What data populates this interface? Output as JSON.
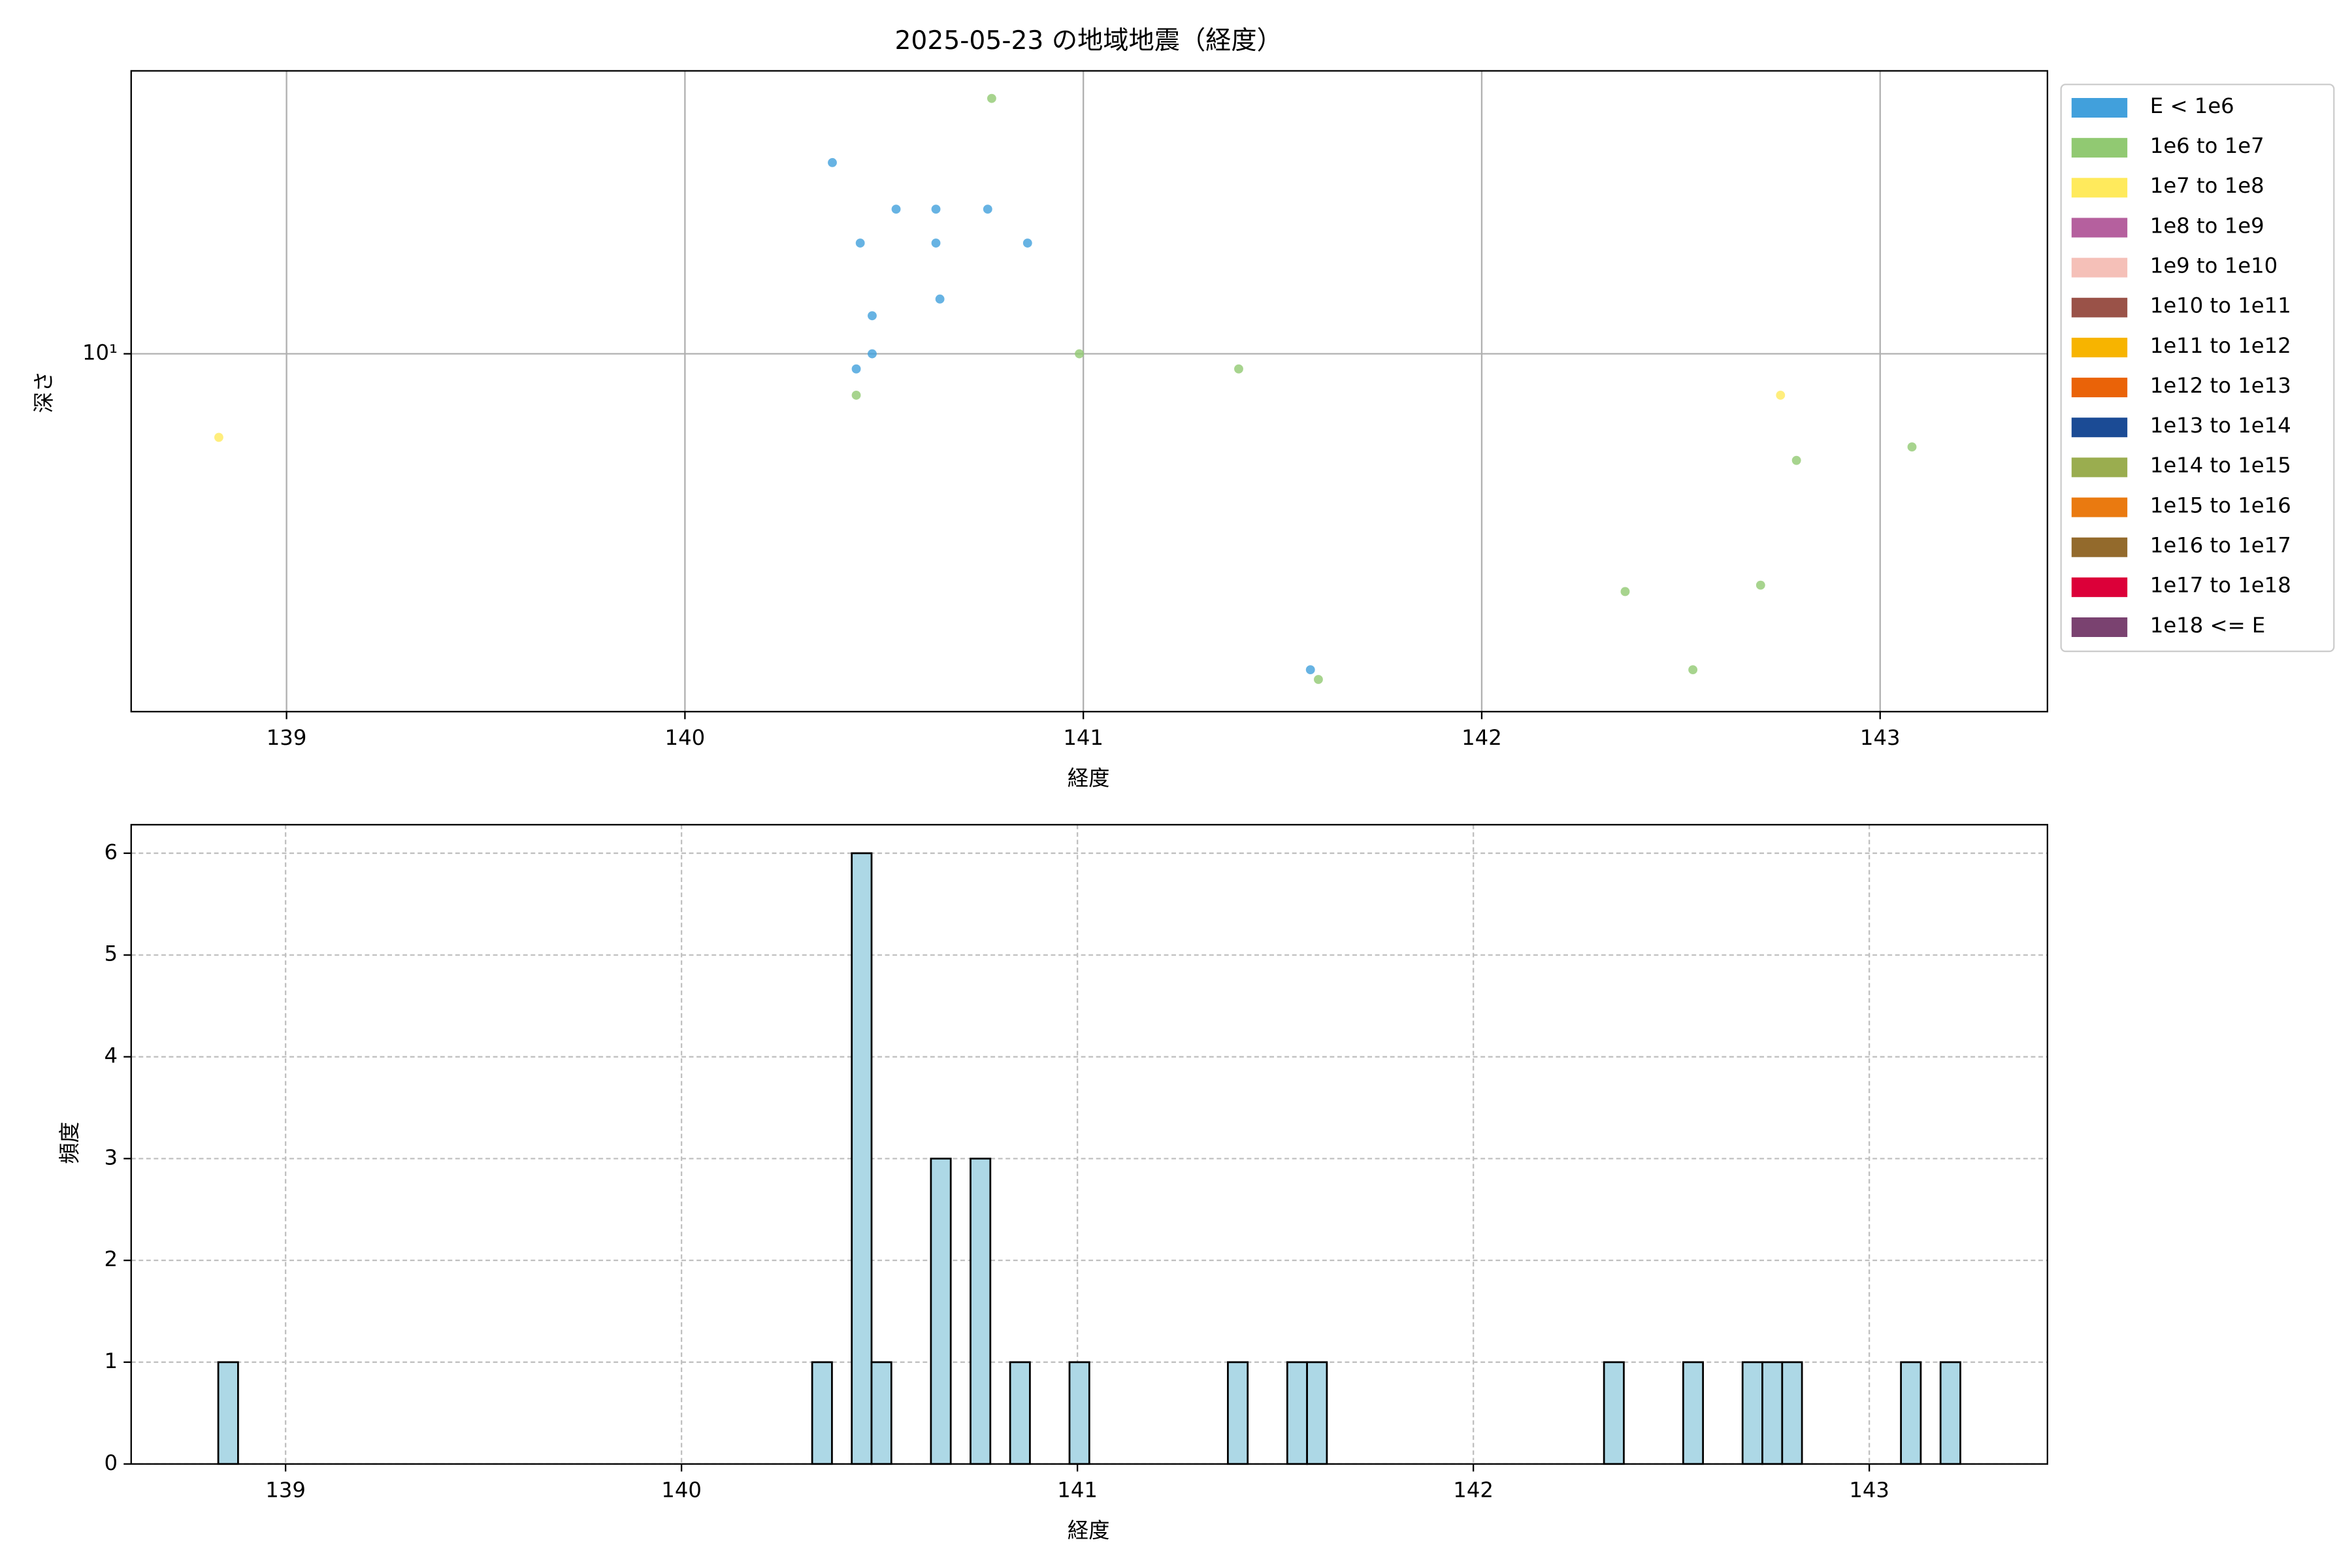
{
  "chart_data": [
    {
      "type": "scatter",
      "title": "2025-05-23 の地域地震（経度）",
      "xlabel": "経度",
      "ylabel": "深さ",
      "xlim": [
        138.61,
        143.42
      ],
      "ylim": [
        1.8,
        38.8
      ],
      "yscale": "log",
      "xticks": [
        139,
        140,
        141,
        142,
        143
      ],
      "yticks": [
        {
          "value": 10,
          "label": "10¹"
        }
      ],
      "grid": true,
      "legend": "outside upper right",
      "series": [
        {
          "name": "E < 1e6",
          "color": "#41a0dc",
          "x": [
            140.37,
            140.44,
            140.53,
            140.63,
            140.63,
            140.76,
            140.86,
            140.64,
            140.47,
            140.47,
            140.43,
            141.57
          ],
          "values": [
            25,
            17,
            20,
            20,
            17,
            20,
            17,
            13,
            12,
            10,
            9.3,
            2.2
          ]
        },
        {
          "name": "1e6 to 1e7",
          "color": "#91c972",
          "x": [
            140.77,
            140.43,
            140.99,
            141.39,
            141.59,
            142.36,
            142.53,
            142.7,
            142.79,
            143.08
          ],
          "values": [
            34,
            8.2,
            10,
            9.3,
            2.1,
            3.2,
            2.2,
            3.3,
            6,
            6.4
          ]
        },
        {
          "name": "1e7 to 1e8",
          "color": "#ffea5c",
          "x": [
            138.83,
            142.75
          ],
          "values": [
            6.7,
            8.2
          ]
        },
        {
          "name": "1e8 to 1e9",
          "color": "#b5609e",
          "x": [],
          "values": []
        },
        {
          "name": "1e9 to 1e10",
          "color": "#f5c0b8",
          "x": [],
          "values": []
        },
        {
          "name": "1e10 to 1e11",
          "color": "#9a5248",
          "x": [],
          "values": []
        },
        {
          "name": "1e11 to 1e12",
          "color": "#f7b400",
          "x": [],
          "values": []
        },
        {
          "name": "1e12 to 1e13",
          "color": "#ea6308",
          "x": [],
          "values": []
        },
        {
          "name": "1e13 to 1e14",
          "color": "#1b4b95",
          "x": [],
          "values": []
        },
        {
          "name": "1e14 to 1e15",
          "color": "#9aad4f",
          "x": [],
          "values": []
        },
        {
          "name": "1e15 to 1e16",
          "color": "#ea7a10",
          "x": [],
          "values": []
        },
        {
          "name": "1e16 to 1e17",
          "color": "#936a2c",
          "x": [],
          "values": []
        },
        {
          "name": "1e17 to 1e18",
          "color": "#dc0039",
          "x": [],
          "values": []
        },
        {
          "name": "1e18 <= E",
          "color": "#7a4270",
          "x": [],
          "values": []
        }
      ]
    },
    {
      "type": "histogram",
      "xlabel": "経度",
      "ylabel": "頻度",
      "xlim": [
        138.61,
        143.45
      ],
      "ylim": [
        0,
        6.28
      ],
      "xticks": [
        139,
        140,
        141,
        142,
        143
      ],
      "yticks": [
        0,
        1,
        2,
        3,
        4,
        5,
        6
      ],
      "grid": true,
      "color": "#add8e6",
      "edgecolor": "#000000",
      "bins": [
        138.83,
        138.88,
        138.93,
        138.98,
        139.03,
        139.08,
        139.13,
        139.18,
        139.23,
        139.28,
        139.33,
        139.38,
        139.43,
        139.48,
        139.53,
        139.58,
        139.63,
        139.68,
        139.73,
        139.78,
        139.83,
        139.88,
        139.93,
        139.98,
        140.03,
        140.08,
        140.13,
        140.18,
        140.23,
        140.28,
        140.33,
        140.38,
        140.43,
        140.48,
        140.53,
        140.58,
        140.63,
        140.68,
        140.73,
        140.78,
        140.83,
        140.88,
        140.93,
        140.98,
        141.03,
        141.08,
        141.13,
        141.18,
        141.23,
        141.28,
        141.33,
        141.38,
        141.43,
        141.48,
        141.53,
        141.58,
        141.63,
        141.68,
        141.73,
        141.78,
        141.83,
        141.88,
        141.93,
        141.98,
        142.03,
        142.08,
        142.13,
        142.18,
        142.23,
        142.28,
        142.33,
        142.38,
        142.43,
        142.48,
        142.53,
        142.58,
        142.63,
        142.68,
        142.73,
        142.78,
        142.83,
        142.88,
        142.93,
        142.98,
        143.03,
        143.08,
        143.13,
        143.18,
        143.23
      ],
      "values": [
        1,
        0,
        0,
        0,
        0,
        0,
        0,
        0,
        0,
        0,
        0,
        0,
        0,
        0,
        0,
        0,
        0,
        0,
        0,
        0,
        0,
        0,
        0,
        0,
        0,
        0,
        0,
        0,
        0,
        0,
        1,
        0,
        6,
        1,
        0,
        0,
        3,
        0,
        3,
        0,
        1,
        0,
        0,
        1,
        0,
        0,
        0,
        0,
        0,
        0,
        0,
        1,
        0,
        0,
        1,
        1,
        0,
        0,
        0,
        0,
        0,
        0,
        0,
        0,
        0,
        0,
        0,
        0,
        0,
        0,
        1,
        0,
        0,
        0,
        1,
        0,
        0,
        1,
        1,
        1,
        0,
        0,
        0,
        0,
        0,
        1,
        0,
        1
      ]
    }
  ]
}
